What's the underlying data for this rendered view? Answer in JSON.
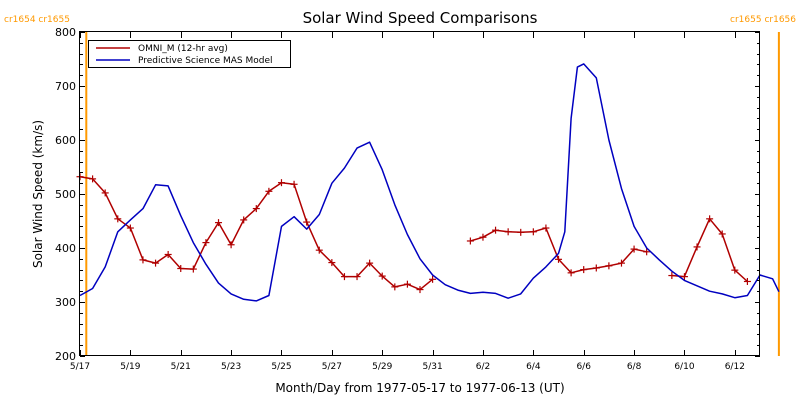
{
  "chart_data": {
    "type": "line",
    "title": "Solar Wind Speed Comparisons",
    "xlabel": "Month/Day from 1977-05-17 to 1977-06-13 (UT)",
    "ylabel": "Solar Wind Speed (km/s)",
    "ylim": [
      200,
      800
    ],
    "yticks": [
      200,
      300,
      400,
      500,
      600,
      700,
      800
    ],
    "xlim": [
      "1977-05-17",
      "1977-06-13"
    ],
    "xticks": [
      {
        "date": "1977-05-17",
        "label": "5/17"
      },
      {
        "date": "1977-05-19",
        "label": "5/19"
      },
      {
        "date": "1977-05-21",
        "label": "5/21"
      },
      {
        "date": "1977-05-23",
        "label": "5/23"
      },
      {
        "date": "1977-05-25",
        "label": "5/25"
      },
      {
        "date": "1977-05-27",
        "label": "5/27"
      },
      {
        "date": "1977-05-29",
        "label": "5/29"
      },
      {
        "date": "1977-05-31",
        "label": "5/31"
      },
      {
        "date": "1977-06-02",
        "label": "6/2"
      },
      {
        "date": "1977-06-04",
        "label": "6/4"
      },
      {
        "date": "1977-06-06",
        "label": "6/6"
      },
      {
        "date": "1977-06-08",
        "label": "6/8"
      },
      {
        "date": "1977-06-10",
        "label": "6/10"
      },
      {
        "date": "1977-06-12",
        "label": "6/12"
      }
    ],
    "legend_placement": "top-left",
    "carrington_markers": [
      {
        "date": "1977-05-17 06:00",
        "left_label": "cr1654",
        "right_label": "cr1655",
        "color": "#ff9900",
        "label_side": "left"
      },
      {
        "date": "1977-06-13 18:00",
        "left_label": "cr1655",
        "right_label": "cr1656",
        "color": "#ff9900",
        "label_side": "right"
      }
    ],
    "series": [
      {
        "name": "OMNI_M (12-hr avg)",
        "color": "#b00000",
        "marker": "plus",
        "x": [
          "1977-05-17 00:00",
          "1977-05-17 12:00",
          "1977-05-18 00:00",
          "1977-05-18 12:00",
          "1977-05-19 00:00",
          "1977-05-19 12:00",
          "1977-05-20 00:00",
          "1977-05-20 12:00",
          "1977-05-21 00:00",
          "1977-05-21 12:00",
          "1977-05-22 00:00",
          "1977-05-22 12:00",
          "1977-05-23 00:00",
          "1977-05-23 12:00",
          "1977-05-24 00:00",
          "1977-05-24 12:00",
          "1977-05-25 00:00",
          "1977-05-25 12:00",
          "1977-05-26 00:00",
          "1977-05-26 12:00",
          "1977-05-27 00:00",
          "1977-05-27 12:00",
          "1977-05-28 00:00",
          "1977-05-28 12:00",
          "1977-05-29 00:00",
          "1977-05-29 12:00",
          "1977-05-30 00:00",
          "1977-05-30 12:00",
          "1977-05-31 00:00",
          "1977-06-01 12:00",
          "1977-06-02 00:00",
          "1977-06-02 12:00",
          "1977-06-03 00:00",
          "1977-06-03 12:00",
          "1977-06-04 00:00",
          "1977-06-04 12:00",
          "1977-06-05 00:00",
          "1977-06-05 12:00",
          "1977-06-06 00:00",
          "1977-06-06 12:00",
          "1977-06-07 00:00",
          "1977-06-07 12:00",
          "1977-06-08 00:00",
          "1977-06-08 12:00",
          "1977-06-09 12:00",
          "1977-06-10 00:00",
          "1977-06-10 12:00",
          "1977-06-11 00:00",
          "1977-06-11 12:00",
          "1977-06-12 00:00",
          "1977-06-12 12:00"
        ],
        "y": [
          532,
          528,
          502,
          454,
          437,
          378,
          372,
          388,
          362,
          361,
          410,
          447,
          406,
          452,
          473,
          505,
          521,
          518,
          448,
          396,
          373,
          347,
          347,
          372,
          348,
          328,
          333,
          323,
          342,
          413,
          420,
          433,
          430,
          429,
          430,
          437,
          379,
          354,
          360,
          363,
          367,
          372,
          398,
          393,
          349,
          347,
          402,
          454,
          426,
          359,
          338
        ]
      },
      {
        "name": "Predictive Science MAS Model",
        "color": "#0000c0",
        "marker": "none",
        "x": [
          "1977-05-17 00:00",
          "1977-05-17 12:00",
          "1977-05-18 00:00",
          "1977-05-18 12:00",
          "1977-05-19 00:00",
          "1977-05-19 12:00",
          "1977-05-20 00:00",
          "1977-05-20 12:00",
          "1977-05-21 00:00",
          "1977-05-21 12:00",
          "1977-05-22 00:00",
          "1977-05-22 12:00",
          "1977-05-23 00:00",
          "1977-05-23 12:00",
          "1977-05-24 00:00",
          "1977-05-24 12:00",
          "1977-05-25 00:00",
          "1977-05-25 12:00",
          "1977-05-26 00:00",
          "1977-05-26 12:00",
          "1977-05-27 00:00",
          "1977-05-27 12:00",
          "1977-05-28 00:00",
          "1977-05-28 12:00",
          "1977-05-29 00:00",
          "1977-05-29 12:00",
          "1977-05-30 00:00",
          "1977-05-30 12:00",
          "1977-05-31 00:00",
          "1977-05-31 12:00",
          "1977-06-01 00:00",
          "1977-06-01 12:00",
          "1977-06-02 00:00",
          "1977-06-02 12:00",
          "1977-06-03 00:00",
          "1977-06-03 12:00",
          "1977-06-04 00:00",
          "1977-06-04 12:00",
          "1977-06-05 00:00",
          "1977-06-05 06:00",
          "1977-06-05 12:00",
          "1977-06-05 18:00",
          "1977-06-06 00:00",
          "1977-06-06 12:00",
          "1977-06-07 00:00",
          "1977-06-07 12:00",
          "1977-06-08 00:00",
          "1977-06-08 12:00",
          "1977-06-09 00:00",
          "1977-06-09 12:00",
          "1977-06-10 00:00",
          "1977-06-10 12:00",
          "1977-06-11 00:00",
          "1977-06-11 12:00",
          "1977-06-12 00:00",
          "1977-06-12 12:00",
          "1977-06-13 00:00",
          "1977-06-13 12:00",
          "1977-06-13 18:00"
        ],
        "y": [
          312,
          325,
          365,
          430,
          452,
          473,
          517,
          515,
          460,
          410,
          370,
          335,
          315,
          305,
          302,
          312,
          440,
          458,
          435,
          462,
          520,
          548,
          585,
          596,
          545,
          480,
          425,
          380,
          350,
          332,
          322,
          316,
          318,
          316,
          307,
          315,
          344,
          365,
          390,
          430,
          640,
          735,
          741,
          715,
          600,
          510,
          440,
          400,
          378,
          357,
          340,
          330,
          320,
          315,
          308,
          312,
          350,
          343,
          319
        ]
      }
    ]
  }
}
